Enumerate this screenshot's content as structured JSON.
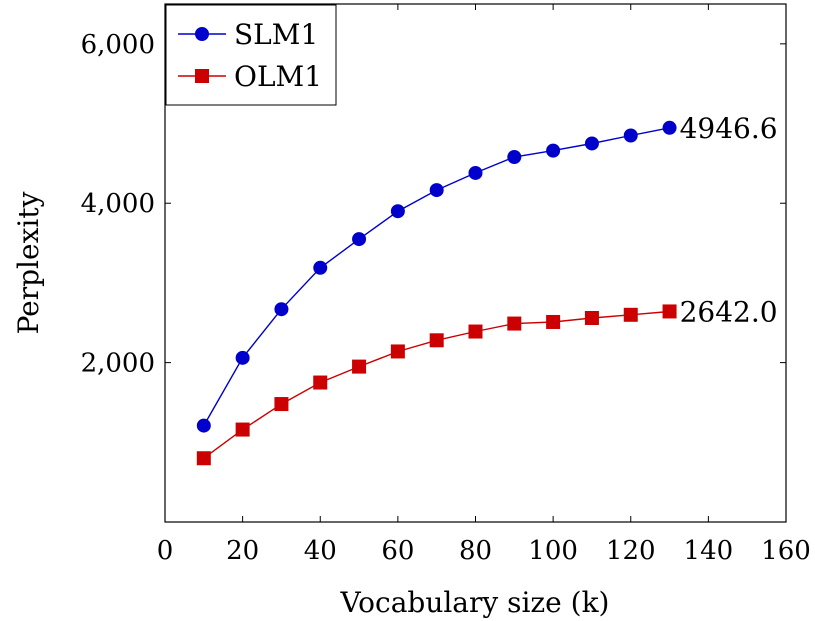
{
  "chart_data": {
    "type": "line",
    "xlabel": "Vocabulary size (k)",
    "ylabel": "Perplexity",
    "xlim": [
      0,
      160
    ],
    "ylim": [
      0,
      6500
    ],
    "xticks": [
      0,
      20,
      40,
      60,
      80,
      100,
      120,
      140,
      160
    ],
    "yticks": [
      2000,
      4000,
      6000
    ],
    "ytick_labels": [
      "2,000",
      "4,000",
      "6,000"
    ],
    "legend_position": "top-left",
    "grid": false,
    "series": [
      {
        "name": "SLM1",
        "color": "#0000cc",
        "marker": "circle",
        "x": [
          10,
          20,
          30,
          40,
          50,
          60,
          70,
          80,
          90,
          100,
          110,
          120,
          130
        ],
        "values": [
          1210,
          2060,
          2670,
          3190,
          3550,
          3900,
          4165,
          4380,
          4580,
          4660,
          4750,
          4850,
          4946.6
        ],
        "end_label": "4946.6"
      },
      {
        "name": "OLM1",
        "color": "#cc0000",
        "marker": "square",
        "x": [
          10,
          20,
          30,
          40,
          50,
          60,
          70,
          80,
          90,
          100,
          110,
          120,
          130
        ],
        "values": [
          800,
          1160,
          1480,
          1750,
          1950,
          2140,
          2280,
          2390,
          2490,
          2510,
          2560,
          2600,
          2642.0
        ],
        "end_label": "2642.0"
      }
    ]
  }
}
